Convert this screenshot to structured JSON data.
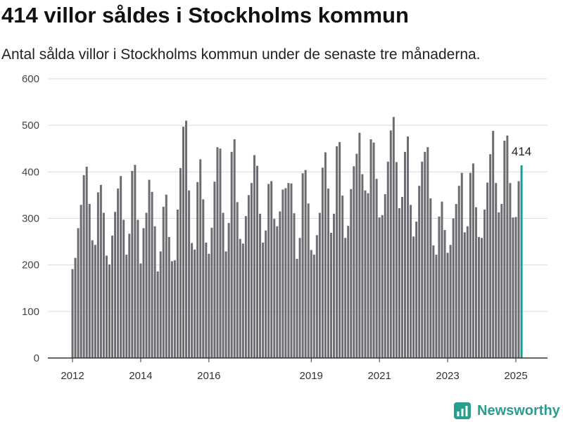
{
  "logo": {
    "text": "Newsworthy",
    "icon": "bar-chart-icon",
    "color": "#2a9d8f"
  },
  "colors": {
    "bar": "#6d6c72",
    "highlight": "#1a9e94",
    "grid": "#dcdcdc",
    "axis": "#333333",
    "tick_text": "#444444",
    "label_text": "#222222"
  },
  "chart_data": {
    "type": "bar",
    "title": "414 villor såldes i Stockholms kommun",
    "subtitle": "Antal sålda villor i Stockholms kommun under de senaste tre månaderna.",
    "xlabel": "",
    "ylabel": "",
    "ylim": [
      0,
      600
    ],
    "yticks": [
      "0",
      "100",
      "200",
      "300",
      "400",
      "500",
      "600"
    ],
    "xticks": [
      "2012",
      "2014",
      "2016",
      "2019",
      "2021",
      "2023",
      "2025"
    ],
    "grid": true,
    "legend": "none",
    "x": [
      "2012-01",
      "2012-02",
      "2012-03",
      "2012-04",
      "2012-05",
      "2012-06",
      "2012-07",
      "2012-08",
      "2012-09",
      "2012-10",
      "2012-11",
      "2012-12",
      "2013-01",
      "2013-02",
      "2013-03",
      "2013-04",
      "2013-05",
      "2013-06",
      "2013-07",
      "2013-08",
      "2013-09",
      "2013-10",
      "2013-11",
      "2013-12",
      "2014-01",
      "2014-02",
      "2014-03",
      "2014-04",
      "2014-05",
      "2014-06",
      "2014-07",
      "2014-08",
      "2014-09",
      "2014-10",
      "2014-11",
      "2014-12",
      "2015-01",
      "2015-02",
      "2015-03",
      "2015-04",
      "2015-05",
      "2015-06",
      "2015-07",
      "2015-08",
      "2015-09",
      "2015-10",
      "2015-11",
      "2015-12",
      "2016-01",
      "2016-02",
      "2016-03",
      "2016-04",
      "2016-05",
      "2016-06",
      "2016-07",
      "2016-08",
      "2016-09",
      "2016-10",
      "2016-11",
      "2016-12",
      "2017-01",
      "2017-02",
      "2017-03",
      "2017-04",
      "2017-05",
      "2017-06",
      "2017-07",
      "2017-08",
      "2017-09",
      "2017-10",
      "2017-11",
      "2017-12",
      "2018-01",
      "2018-02",
      "2018-03",
      "2018-04",
      "2018-05",
      "2018-06",
      "2018-07",
      "2018-08",
      "2018-09",
      "2018-10",
      "2018-11",
      "2018-12",
      "2019-01",
      "2019-02",
      "2019-03",
      "2019-04",
      "2019-05",
      "2019-06",
      "2019-07",
      "2019-08",
      "2019-09",
      "2019-10",
      "2019-11",
      "2019-12",
      "2020-01",
      "2020-02",
      "2020-03",
      "2020-04",
      "2020-05",
      "2020-06",
      "2020-07",
      "2020-08",
      "2020-09",
      "2020-10",
      "2020-11",
      "2020-12",
      "2021-01",
      "2021-02",
      "2021-03",
      "2021-04",
      "2021-05",
      "2021-06",
      "2021-07",
      "2021-08",
      "2021-09",
      "2021-10",
      "2021-11",
      "2021-12",
      "2022-01",
      "2022-02",
      "2022-03",
      "2022-04",
      "2022-05",
      "2022-06",
      "2022-07",
      "2022-08",
      "2022-09",
      "2022-10",
      "2022-11",
      "2022-12",
      "2023-01",
      "2023-02",
      "2023-03",
      "2023-04",
      "2023-05",
      "2023-06",
      "2023-07",
      "2023-08",
      "2023-09",
      "2023-10",
      "2023-11",
      "2023-12",
      "2024-01",
      "2024-02",
      "2024-03",
      "2024-04",
      "2024-05",
      "2024-06",
      "2024-07",
      "2024-08",
      "2024-09",
      "2024-10",
      "2024-11",
      "2024-12",
      "2025-01",
      "2025-02",
      "2025-03"
    ],
    "values": [
      191,
      215,
      279,
      329,
      393,
      411,
      331,
      253,
      243,
      356,
      372,
      312,
      220,
      201,
      263,
      314,
      364,
      391,
      297,
      222,
      267,
      402,
      415,
      297,
      203,
      279,
      312,
      383,
      357,
      283,
      186,
      229,
      325,
      351,
      260,
      208,
      210,
      319,
      408,
      497,
      510,
      360,
      247,
      233,
      378,
      427,
      341,
      248,
      224,
      280,
      379,
      453,
      450,
      312,
      229,
      290,
      443,
      470,
      335,
      256,
      246,
      305,
      350,
      376,
      436,
      413,
      310,
      248,
      274,
      374,
      380,
      299,
      283,
      315,
      362,
      365,
      376,
      375,
      311,
      213,
      258,
      397,
      404,
      332,
      232,
      222,
      264,
      312,
      409,
      442,
      364,
      269,
      310,
      455,
      464,
      349,
      258,
      284,
      363,
      412,
      439,
      484,
      395,
      360,
      354,
      470,
      463,
      385,
      302,
      307,
      352,
      422,
      489,
      518,
      421,
      322,
      346,
      443,
      476,
      329,
      261,
      293,
      370,
      422,
      443,
      453,
      343,
      242,
      222,
      304,
      336,
      275,
      226,
      243,
      300,
      331,
      370,
      398,
      270,
      283,
      398,
      418,
      324,
      260,
      258,
      319,
      377,
      438,
      488,
      376,
      313,
      331,
      467,
      478,
      376,
      302,
      303,
      380,
      414
    ],
    "highlight": {
      "x": "2025-03",
      "value": 414,
      "label": "414"
    }
  }
}
